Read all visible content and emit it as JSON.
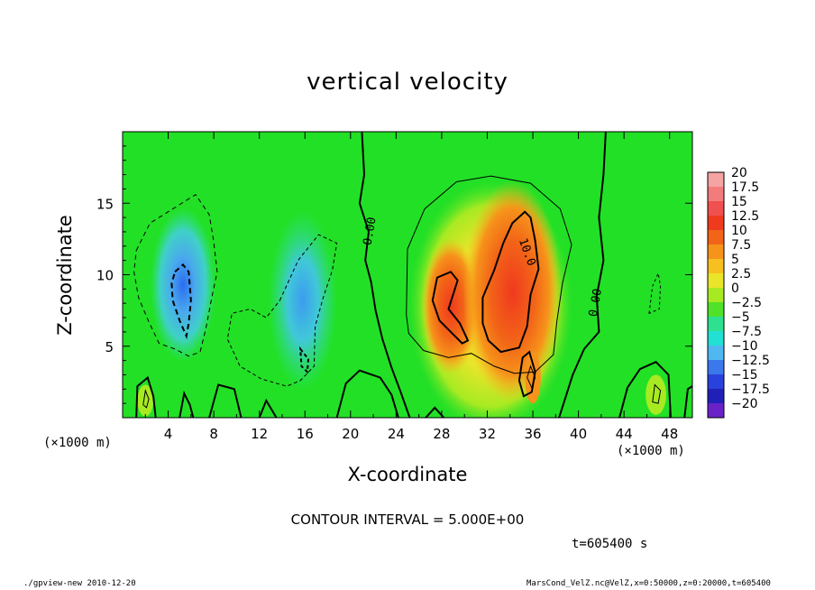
{
  "chart_data": {
    "type": "heatmap",
    "title": "vertical velocity",
    "xlabel": "X-coordinate",
    "ylabel": "Z-coordinate",
    "xunit": "(×1000 m)",
    "xlim": [
      0,
      50
    ],
    "ylim": [
      0,
      20
    ],
    "xticks": [
      4,
      8,
      12,
      16,
      20,
      24,
      28,
      32,
      36,
      40,
      44,
      48
    ],
    "yticks": [
      5,
      10,
      15
    ],
    "contour_labels": [
      {
        "text": "0.00",
        "x": 22,
        "y": 13
      },
      {
        "text": "10.0",
        "x": 35.2,
        "y": 11.5
      },
      {
        "text": "0.00",
        "x": 41.8,
        "y": 8
      }
    ],
    "cells": [
      {
        "name": "downdraft-core",
        "x": 5.3,
        "y": 9.3,
        "value": -10,
        "rx": 1.8,
        "ry": 3.6
      },
      {
        "name": "downdraft-secondary",
        "x": 15.8,
        "y": 8.2,
        "value": -7.5,
        "rx": 1.9,
        "ry": 4.2
      },
      {
        "name": "updraft-left",
        "x": 28.8,
        "y": 7.8,
        "value": 12.5,
        "rx": 1.6,
        "ry": 3.2
      },
      {
        "name": "updraft-right",
        "x": 34.2,
        "y": 8.8,
        "value": 12.5,
        "rx": 2.7,
        "ry": 5.2
      }
    ],
    "colorbar": {
      "labels": [
        "20",
        "17.5",
        "15",
        "12.5",
        "10",
        "7.5",
        "5",
        "2.5",
        "0",
        "-2.5",
        "-5",
        "-7.5",
        "-10",
        "-12.5",
        "-15",
        "-17.5",
        "-20"
      ],
      "colors": [
        "#f6a3a3",
        "#f27c7c",
        "#f05050",
        "#f03a1e",
        "#f26418",
        "#f6931a",
        "#f7c020",
        "#e9e52a",
        "#a8ea22",
        "#50e228",
        "#2ee090",
        "#22e0d4",
        "#50b8f0",
        "#3a78ec",
        "#2a42dc",
        "#2020b8",
        "#6a22c8"
      ]
    },
    "contour_interval": "CONTOUR INTERVAL = 5.000E+00",
    "time": "t=605400 s"
  },
  "footer": {
    "left": "./gpview-new   2010-12-20",
    "right": "MarsCond_VelZ.nc@VelZ,x=0:50000,z=0:20000,t=605400"
  },
  "colors": {
    "background_field": "#20e020"
  }
}
